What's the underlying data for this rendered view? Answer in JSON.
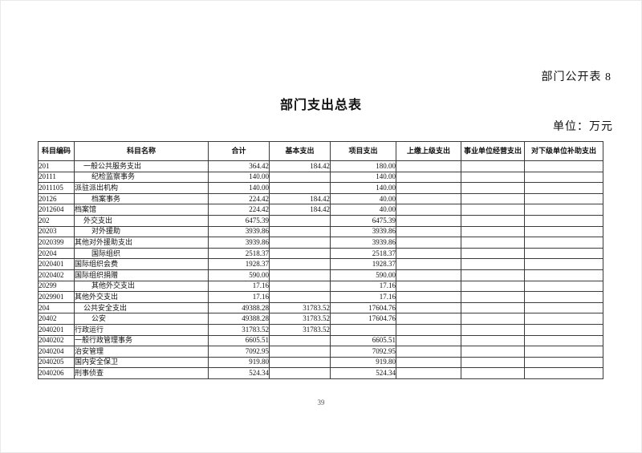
{
  "page": {
    "doc_label": "部门公开表 8",
    "title": "部门支出总表",
    "unit_label": "单位：万元",
    "page_number": "39"
  },
  "table": {
    "columns": [
      "科目编码",
      "科目名称",
      "合计",
      "基本支出",
      "项目支出",
      "上缴上级支出",
      "事业单位经营支出",
      "对下级单位补助支出"
    ],
    "rows": [
      {
        "code": "201",
        "name": "一般公共服务支出",
        "indent": 1,
        "total": "364.42",
        "basic": "184.42",
        "project": "180.00",
        "pay_up": "",
        "operating": "",
        "subsidy": ""
      },
      {
        "code": "20111",
        "name": "纪检监察事务",
        "indent": 2,
        "total": "140.00",
        "basic": "",
        "project": "140.00",
        "pay_up": "",
        "operating": "",
        "subsidy": ""
      },
      {
        "code": "2011105",
        "name": "派驻派出机构",
        "indent": 0,
        "total": "140.00",
        "basic": "",
        "project": "140.00",
        "pay_up": "",
        "operating": "",
        "subsidy": ""
      },
      {
        "code": "20126",
        "name": "档案事务",
        "indent": 2,
        "total": "224.42",
        "basic": "184.42",
        "project": "40.00",
        "pay_up": "",
        "operating": "",
        "subsidy": ""
      },
      {
        "code": "2012604",
        "name": "档案馆",
        "indent": 0,
        "total": "224.42",
        "basic": "184.42",
        "project": "40.00",
        "pay_up": "",
        "operating": "",
        "subsidy": ""
      },
      {
        "code": "202",
        "name": "外交支出",
        "indent": 1,
        "total": "6475.39",
        "basic": "",
        "project": "6475.39",
        "pay_up": "",
        "operating": "",
        "subsidy": ""
      },
      {
        "code": "20203",
        "name": "对外援助",
        "indent": 2,
        "total": "3939.86",
        "basic": "",
        "project": "3939.86",
        "pay_up": "",
        "operating": "",
        "subsidy": ""
      },
      {
        "code": "2020399",
        "name": "其他对外援助支出",
        "indent": 0,
        "total": "3939.86",
        "basic": "",
        "project": "3939.86",
        "pay_up": "",
        "operating": "",
        "subsidy": ""
      },
      {
        "code": "20204",
        "name": "国际组织",
        "indent": 2,
        "total": "2518.37",
        "basic": "",
        "project": "2518.37",
        "pay_up": "",
        "operating": "",
        "subsidy": ""
      },
      {
        "code": "2020401",
        "name": "国际组织会费",
        "indent": 0,
        "total": "1928.37",
        "basic": "",
        "project": "1928.37",
        "pay_up": "",
        "operating": "",
        "subsidy": ""
      },
      {
        "code": "2020402",
        "name": "国际组织捐赠",
        "indent": 0,
        "total": "590.00",
        "basic": "",
        "project": "590.00",
        "pay_up": "",
        "operating": "",
        "subsidy": ""
      },
      {
        "code": "20299",
        "name": "其他外交支出",
        "indent": 2,
        "total": "17.16",
        "basic": "",
        "project": "17.16",
        "pay_up": "",
        "operating": "",
        "subsidy": ""
      },
      {
        "code": "2029901",
        "name": "其他外交支出",
        "indent": 0,
        "total": "17.16",
        "basic": "",
        "project": "17.16",
        "pay_up": "",
        "operating": "",
        "subsidy": ""
      },
      {
        "code": "204",
        "name": "公共安全支出",
        "indent": 1,
        "total": "49388.28",
        "basic": "31783.52",
        "project": "17604.76",
        "pay_up": "",
        "operating": "",
        "subsidy": ""
      },
      {
        "code": "20402",
        "name": "公安",
        "indent": 2,
        "total": "49388.28",
        "basic": "31783.52",
        "project": "17604.76",
        "pay_up": "",
        "operating": "",
        "subsidy": ""
      },
      {
        "code": "2040201",
        "name": "行政运行",
        "indent": 0,
        "total": "31783.52",
        "basic": "31783.52",
        "project": "",
        "pay_up": "",
        "operating": "",
        "subsidy": ""
      },
      {
        "code": "2040202",
        "name": "一般行政管理事务",
        "indent": 0,
        "total": "6605.51",
        "basic": "",
        "project": "6605.51",
        "pay_up": "",
        "operating": "",
        "subsidy": ""
      },
      {
        "code": "2040204",
        "name": "治安管理",
        "indent": 0,
        "total": "7092.95",
        "basic": "",
        "project": "7092.95",
        "pay_up": "",
        "operating": "",
        "subsidy": ""
      },
      {
        "code": "2040205",
        "name": "国内安全保卫",
        "indent": 0,
        "total": "919.80",
        "basic": "",
        "project": "919.80",
        "pay_up": "",
        "operating": "",
        "subsidy": ""
      },
      {
        "code": "2040206",
        "name": "刑事侦查",
        "indent": 0,
        "total": "524.34",
        "basic": "",
        "project": "524.34",
        "pay_up": "",
        "operating": "",
        "subsidy": ""
      }
    ]
  }
}
